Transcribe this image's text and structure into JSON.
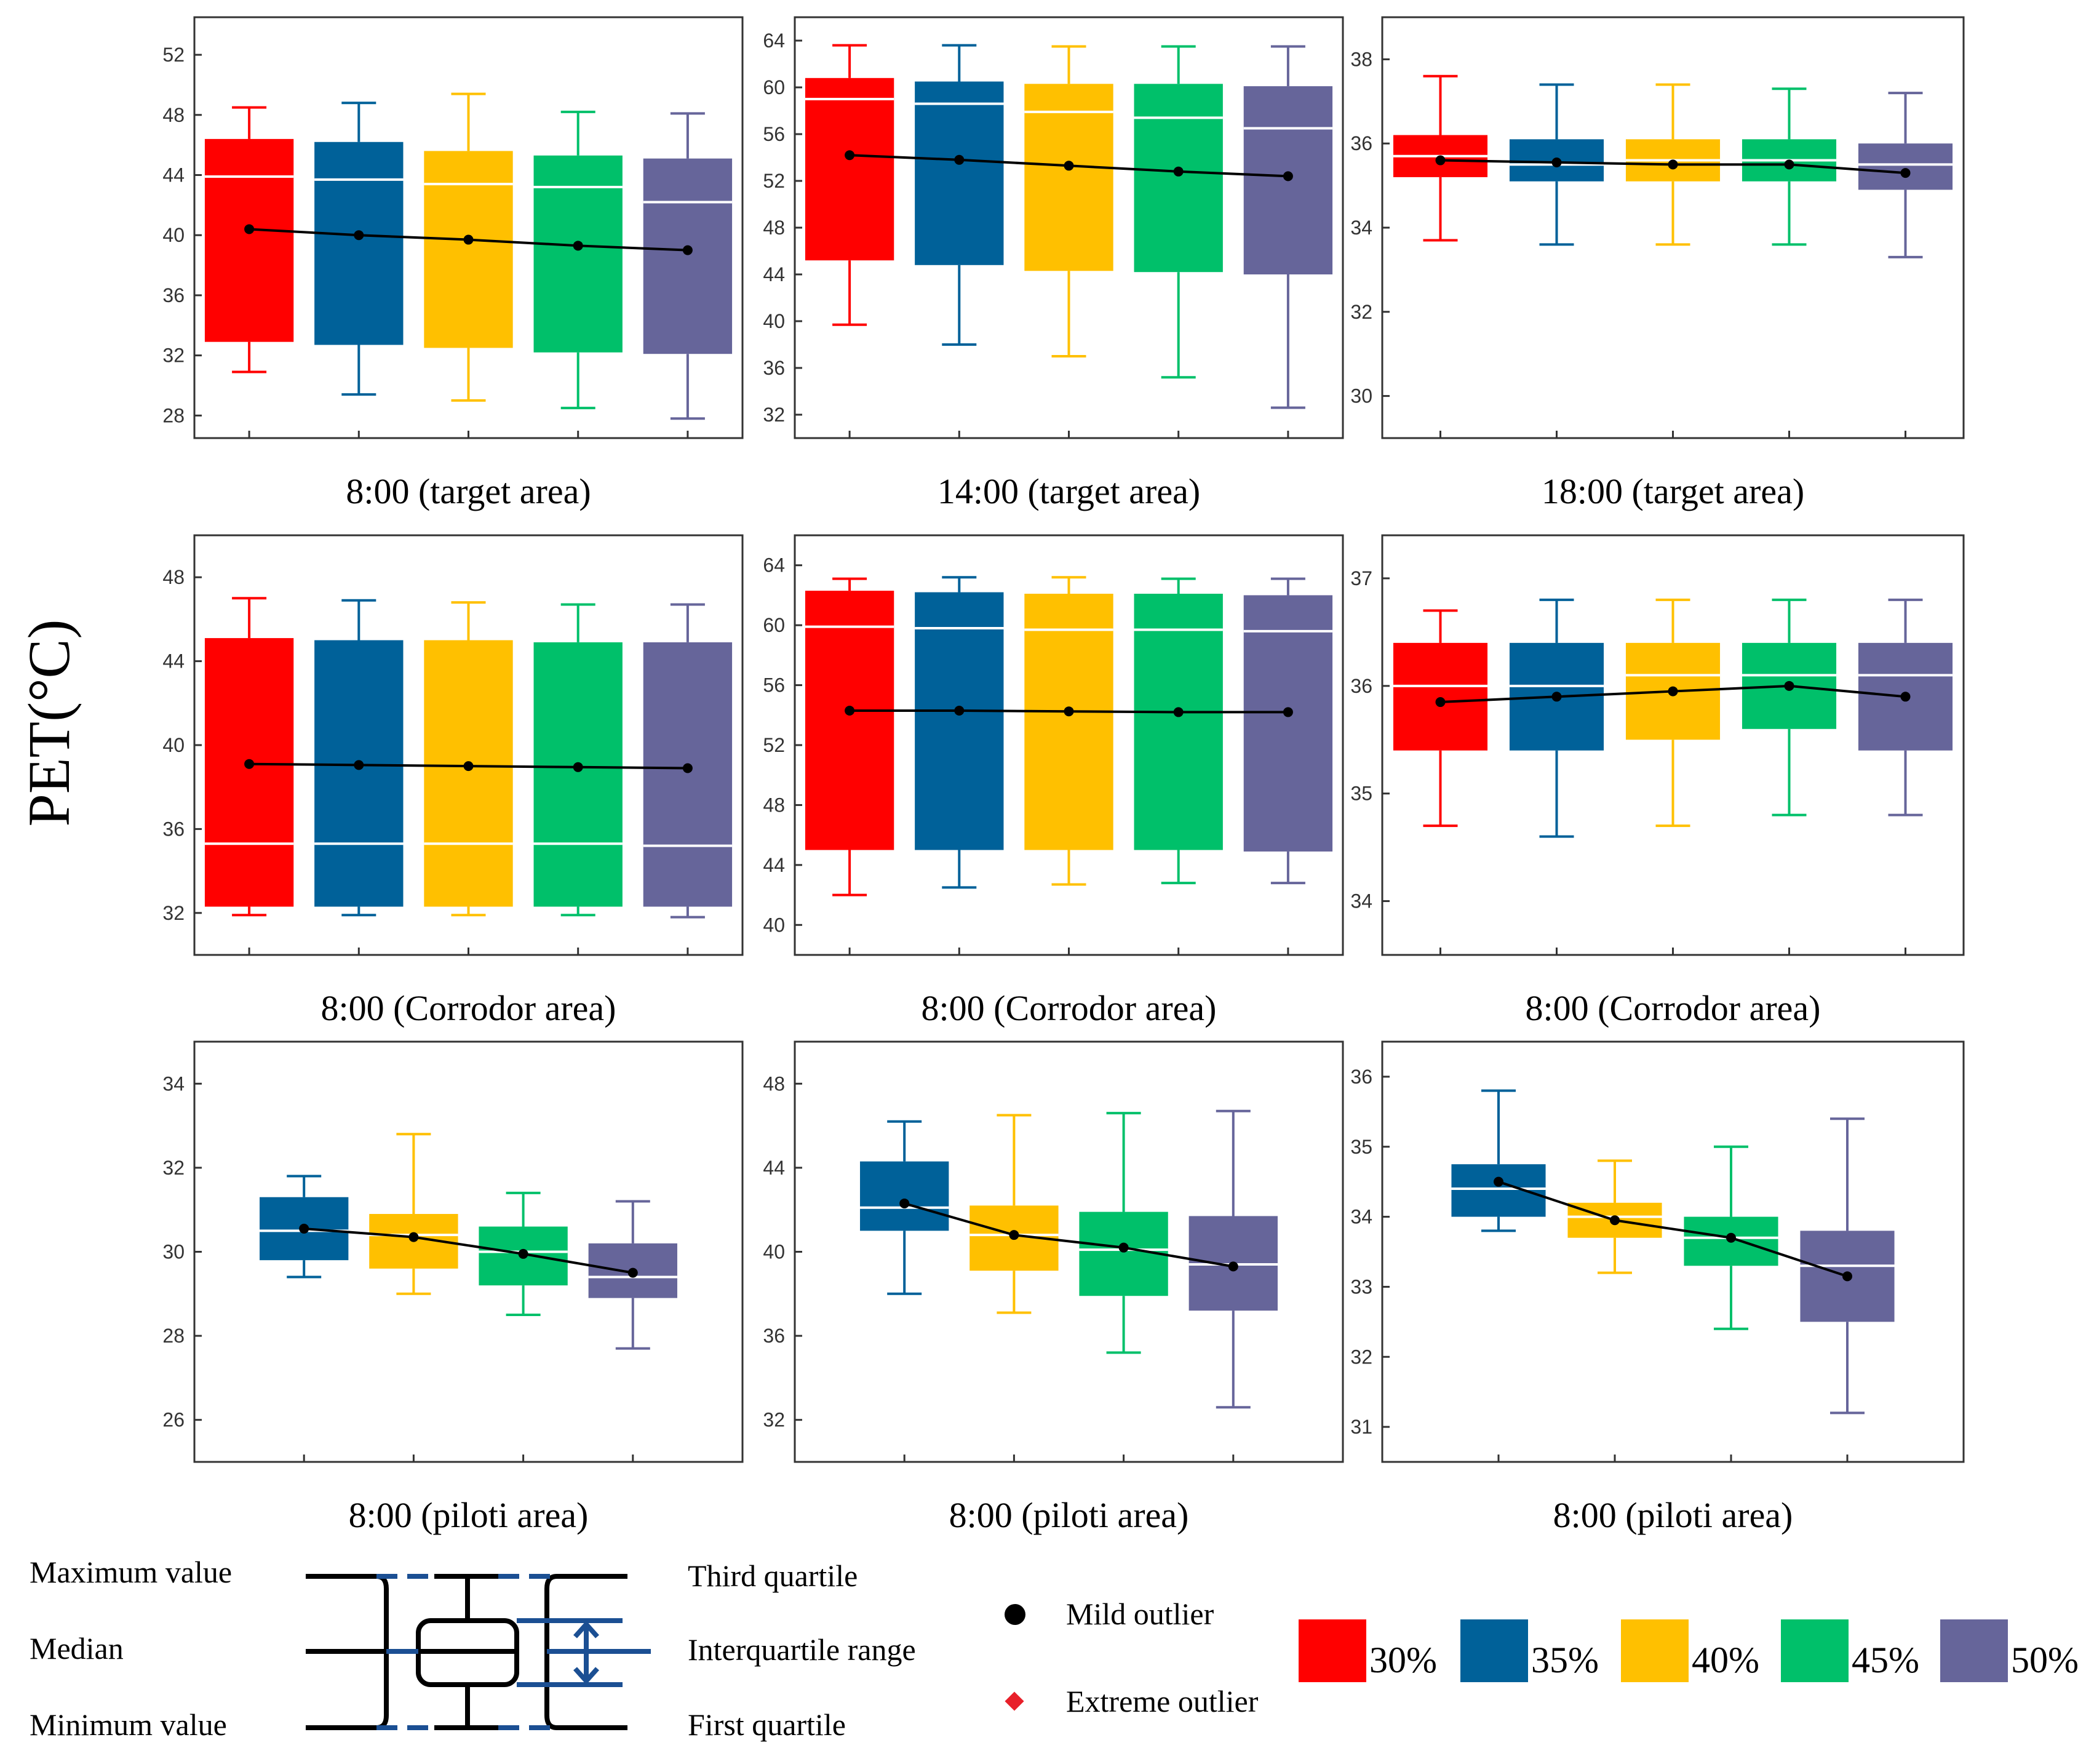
{
  "figure": {
    "ylabel": "PET(°C)",
    "colors": [
      "#ff0000",
      "#006199",
      "#ffc000",
      "#00c06a",
      "#66659a"
    ],
    "legend": {
      "max_label": "Maximum value",
      "median_label": "Median",
      "min_label": "Minimum value",
      "q3_label": "Third quartile",
      "iqr_label": "Interquartile range",
      "q1_label": "First quartile",
      "mild_label": "Mild outlier",
      "extreme_label": "Extreme outlier",
      "series": [
        "30%",
        "35%",
        "40%",
        "45%",
        "50%"
      ]
    }
  },
  "chart_data": [
    {
      "type": "box",
      "title": "8:00 (target area)",
      "ylim": [
        26.5,
        54.5
      ],
      "yticks": [
        28,
        32,
        36,
        40,
        44,
        48,
        52
      ],
      "series_idx": [
        0,
        1,
        2,
        3,
        4
      ],
      "boxes": [
        {
          "min": 30.9,
          "q1": 32.9,
          "median": 43.9,
          "q3": 46.4,
          "max": 48.5,
          "mean": 40.4
        },
        {
          "min": 29.4,
          "q1": 32.7,
          "median": 43.7,
          "q3": 46.2,
          "max": 48.8,
          "mean": 40.0
        },
        {
          "min": 29.0,
          "q1": 32.5,
          "median": 43.4,
          "q3": 45.6,
          "max": 49.4,
          "mean": 39.7
        },
        {
          "min": 28.5,
          "q1": 32.2,
          "median": 43.2,
          "q3": 45.3,
          "max": 48.2,
          "mean": 39.3
        },
        {
          "min": 27.8,
          "q1": 32.1,
          "median": 42.2,
          "q3": 45.1,
          "max": 48.1,
          "mean": 39.0
        }
      ]
    },
    {
      "type": "box",
      "title": "14:00 (target area)",
      "ylim": [
        30,
        66
      ],
      "yticks": [
        32,
        36,
        40,
        44,
        48,
        52,
        56,
        60,
        64
      ],
      "series_idx": [
        0,
        1,
        2,
        3,
        4
      ],
      "boxes": [
        {
          "min": 39.7,
          "q1": 45.2,
          "median": 59.0,
          "q3": 60.8,
          "max": 63.6,
          "mean": 54.2
        },
        {
          "min": 38.0,
          "q1": 44.8,
          "median": 58.6,
          "q3": 60.5,
          "max": 63.6,
          "mean": 53.8
        },
        {
          "min": 37.0,
          "q1": 44.3,
          "median": 57.9,
          "q3": 60.3,
          "max": 63.5,
          "mean": 53.3
        },
        {
          "min": 35.2,
          "q1": 44.2,
          "median": 57.4,
          "q3": 60.3,
          "max": 63.5,
          "mean": 52.8
        },
        {
          "min": 32.6,
          "q1": 44.0,
          "median": 56.5,
          "q3": 60.1,
          "max": 63.5,
          "mean": 52.4
        }
      ]
    },
    {
      "type": "box",
      "title": "18:00 (target area)",
      "ylim": [
        29,
        39
      ],
      "yticks": [
        30,
        32,
        34,
        36,
        38
      ],
      "series_idx": [
        0,
        1,
        2,
        3,
        4
      ],
      "boxes": [
        {
          "min": 33.7,
          "q1": 35.2,
          "median": 35.7,
          "q3": 36.2,
          "max": 37.6,
          "mean": 35.6
        },
        {
          "min": 33.6,
          "q1": 35.1,
          "median": 35.5,
          "q3": 36.1,
          "max": 37.4,
          "mean": 35.55
        },
        {
          "min": 33.6,
          "q1": 35.1,
          "median": 35.6,
          "q3": 36.1,
          "max": 37.4,
          "mean": 35.5
        },
        {
          "min": 33.6,
          "q1": 35.1,
          "median": 35.6,
          "q3": 36.1,
          "max": 37.3,
          "mean": 35.5
        },
        {
          "min": 33.3,
          "q1": 34.9,
          "median": 35.5,
          "q3": 36.0,
          "max": 37.2,
          "mean": 35.3
        }
      ]
    },
    {
      "type": "box",
      "title": "8:00 (Corrodor area)",
      "ylim": [
        30,
        50
      ],
      "yticks": [
        32,
        36,
        40,
        44,
        48
      ],
      "series_idx": [
        0,
        1,
        2,
        3,
        4
      ],
      "boxes": [
        {
          "min": 31.9,
          "q1": 32.3,
          "median": 35.3,
          "q3": 45.1,
          "max": 47.0,
          "mean": 39.1
        },
        {
          "min": 31.9,
          "q1": 32.3,
          "median": 35.3,
          "q3": 45.0,
          "max": 46.9,
          "mean": 39.05
        },
        {
          "min": 31.9,
          "q1": 32.3,
          "median": 35.3,
          "q3": 45.0,
          "max": 46.8,
          "mean": 39.0
        },
        {
          "min": 31.9,
          "q1": 32.3,
          "median": 35.3,
          "q3": 44.9,
          "max": 46.7,
          "mean": 38.95
        },
        {
          "min": 31.8,
          "q1": 32.3,
          "median": 35.2,
          "q3": 44.9,
          "max": 46.7,
          "mean": 38.9
        }
      ]
    },
    {
      "type": "box",
      "title": "8:00 (Corrodor area)",
      "ylim": [
        38,
        66
      ],
      "yticks": [
        40,
        44,
        48,
        52,
        56,
        60,
        64
      ],
      "series_idx": [
        0,
        1,
        2,
        3,
        4
      ],
      "boxes": [
        {
          "min": 42.0,
          "q1": 45.0,
          "median": 59.9,
          "q3": 62.3,
          "max": 63.1,
          "mean": 54.3
        },
        {
          "min": 42.5,
          "q1": 45.0,
          "median": 59.8,
          "q3": 62.2,
          "max": 63.2,
          "mean": 54.3
        },
        {
          "min": 42.7,
          "q1": 45.0,
          "median": 59.7,
          "q3": 62.1,
          "max": 63.2,
          "mean": 54.25
        },
        {
          "min": 42.8,
          "q1": 45.0,
          "median": 59.7,
          "q3": 62.1,
          "max": 63.1,
          "mean": 54.2
        },
        {
          "min": 42.8,
          "q1": 44.9,
          "median": 59.6,
          "q3": 62.0,
          "max": 63.1,
          "mean": 54.2
        }
      ]
    },
    {
      "type": "box",
      "title": "8:00 (Corrodor area)",
      "ylim": [
        33.5,
        37.4
      ],
      "yticks": [
        34,
        35,
        36,
        37
      ],
      "series_idx": [
        0,
        1,
        2,
        3,
        4
      ],
      "boxes": [
        {
          "min": 34.7,
          "q1": 35.4,
          "median": 36.0,
          "q3": 36.4,
          "max": 36.7,
          "mean": 35.85
        },
        {
          "min": 34.6,
          "q1": 35.4,
          "median": 36.0,
          "q3": 36.4,
          "max": 36.8,
          "mean": 35.9
        },
        {
          "min": 34.7,
          "q1": 35.5,
          "median": 36.1,
          "q3": 36.4,
          "max": 36.8,
          "mean": 35.95
        },
        {
          "min": 34.8,
          "q1": 35.6,
          "median": 36.1,
          "q3": 36.4,
          "max": 36.8,
          "mean": 36.0
        },
        {
          "min": 34.8,
          "q1": 35.4,
          "median": 36.1,
          "q3": 36.4,
          "max": 36.8,
          "mean": 35.9
        }
      ]
    },
    {
      "type": "box",
      "title": "8:00 (piloti area)",
      "ylim": [
        25,
        35
      ],
      "yticks": [
        26,
        28,
        30,
        32,
        34
      ],
      "series_idx": [
        1,
        2,
        3,
        4
      ],
      "boxes": [
        {
          "min": 29.4,
          "q1": 29.8,
          "median": 30.5,
          "q3": 31.3,
          "max": 31.8,
          "mean": 30.55
        },
        {
          "min": 29.0,
          "q1": 29.6,
          "median": 30.4,
          "q3": 30.9,
          "max": 32.8,
          "mean": 30.35
        },
        {
          "min": 28.5,
          "q1": 29.2,
          "median": 30.0,
          "q3": 30.6,
          "max": 31.4,
          "mean": 29.95
        },
        {
          "min": 27.7,
          "q1": 28.9,
          "median": 29.4,
          "q3": 30.2,
          "max": 31.2,
          "mean": 29.5
        }
      ]
    },
    {
      "type": "box",
      "title": "8:00 (piloti area)",
      "ylim": [
        30,
        50
      ],
      "yticks": [
        32,
        36,
        40,
        44,
        48
      ],
      "series_idx": [
        1,
        2,
        3,
        4
      ],
      "boxes": [
        {
          "min": 38.0,
          "q1": 41.0,
          "median": 42.1,
          "q3": 44.3,
          "max": 46.2,
          "mean": 42.3
        },
        {
          "min": 37.1,
          "q1": 39.1,
          "median": 40.8,
          "q3": 42.2,
          "max": 46.5,
          "mean": 40.8
        },
        {
          "min": 35.2,
          "q1": 37.9,
          "median": 40.1,
          "q3": 41.9,
          "max": 46.6,
          "mean": 40.2
        },
        {
          "min": 32.6,
          "q1": 37.2,
          "median": 39.4,
          "q3": 41.7,
          "max": 46.7,
          "mean": 39.3
        }
      ]
    },
    {
      "type": "box",
      "title": "8:00 (piloti area)",
      "ylim": [
        30.5,
        36.5
      ],
      "yticks": [
        31,
        32,
        33,
        34,
        35,
        36
      ],
      "series_idx": [
        1,
        2,
        3,
        4
      ],
      "boxes": [
        {
          "min": 33.8,
          "q1": 34.0,
          "median": 34.4,
          "q3": 34.75,
          "max": 35.8,
          "mean": 34.5
        },
        {
          "min": 33.2,
          "q1": 33.7,
          "median": 34.0,
          "q3": 34.2,
          "max": 34.8,
          "mean": 33.95
        },
        {
          "min": 32.4,
          "q1": 33.3,
          "median": 33.7,
          "q3": 34.0,
          "max": 35.0,
          "mean": 33.7
        },
        {
          "min": 31.2,
          "q1": 32.5,
          "median": 33.3,
          "q3": 33.8,
          "max": 35.4,
          "mean": 33.15
        }
      ]
    }
  ]
}
